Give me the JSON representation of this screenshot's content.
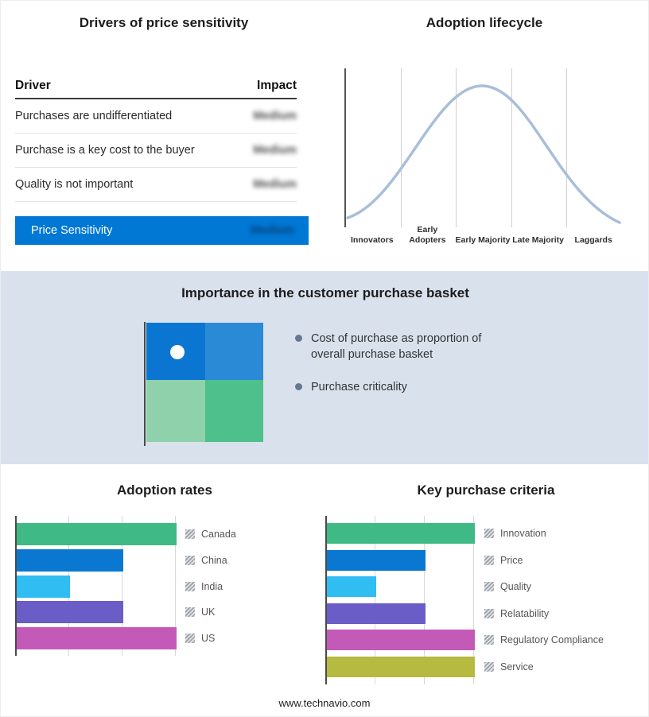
{
  "page": {
    "footer": "www.technavio.com"
  },
  "colors": {
    "accent_blue": "#0078d4",
    "band_bg": "#d9e1ed",
    "curve": "#a9bed8",
    "green": "#3fb985",
    "blue": "#0a78d0",
    "cyan": "#2fbdf2",
    "purple": "#6a5dc8",
    "magenta": "#c45ab8",
    "olive": "#b6ba40"
  },
  "drivers": {
    "title": "Drivers of price sensitivity",
    "columns": {
      "driver": "Driver",
      "impact": "Impact"
    },
    "rows": [
      {
        "driver": "Purchases are undifferentiated",
        "impact": "Medium"
      },
      {
        "driver": "Purchase is a key cost to the buyer",
        "impact": "Medium"
      },
      {
        "driver": "Quality is not important",
        "impact": "Medium"
      }
    ],
    "summary": {
      "label": "Price Sensitivity",
      "impact": "Medium"
    }
  },
  "basket": {
    "title": "Importance in the customer purchase basket",
    "bullets": [
      "Cost of purchase as proportion of overall purchase basket",
      "Purchase criticality"
    ]
  },
  "quadrant": {
    "colors": [
      "#0b76d1",
      "#2a8ad6",
      "#8ed1aa",
      "#4ec08b"
    ]
  },
  "chart_data": [
    {
      "id": "adoption-lifecycle",
      "type": "area",
      "title": "Adoption lifecycle",
      "categories": [
        "Innovators",
        "Early Adopters",
        "Early Majority",
        "Late Majority",
        "Laggards"
      ],
      "values_normalized": [
        0.05,
        0.55,
        1.0,
        0.55,
        0.05
      ],
      "xlabel": "",
      "ylabel": "",
      "legend": "none",
      "note": "stylized bell curve, no numeric axes shown"
    },
    {
      "id": "adoption-rates",
      "type": "bar",
      "orientation": "horizontal",
      "title": "Adoption rates",
      "categories": [
        "Canada",
        "China",
        "India",
        "UK",
        "US"
      ],
      "values": [
        3,
        2,
        1,
        2,
        3
      ],
      "colors": [
        "#3fb985",
        "#0a78d0",
        "#2fbdf2",
        "#6a5dc8",
        "#c45ab8"
      ],
      "xlim": [
        0,
        3
      ],
      "gridlines": "vertical",
      "axis_tick_labels": "none",
      "legend_position": "right"
    },
    {
      "id": "key-purchase-criteria",
      "type": "bar",
      "orientation": "horizontal",
      "title": "Key purchase criteria",
      "categories": [
        "Innovation",
        "Price",
        "Quality",
        "Relatability",
        "Regulatory Compliance",
        "Service"
      ],
      "values": [
        3,
        2,
        1,
        2,
        3,
        3
      ],
      "colors": [
        "#3fb985",
        "#0a78d0",
        "#2fbdf2",
        "#6a5dc8",
        "#c45ab8",
        "#b6ba40"
      ],
      "xlim": [
        0,
        3
      ],
      "gridlines": "vertical",
      "axis_tick_labels": "none",
      "legend_position": "right"
    }
  ]
}
